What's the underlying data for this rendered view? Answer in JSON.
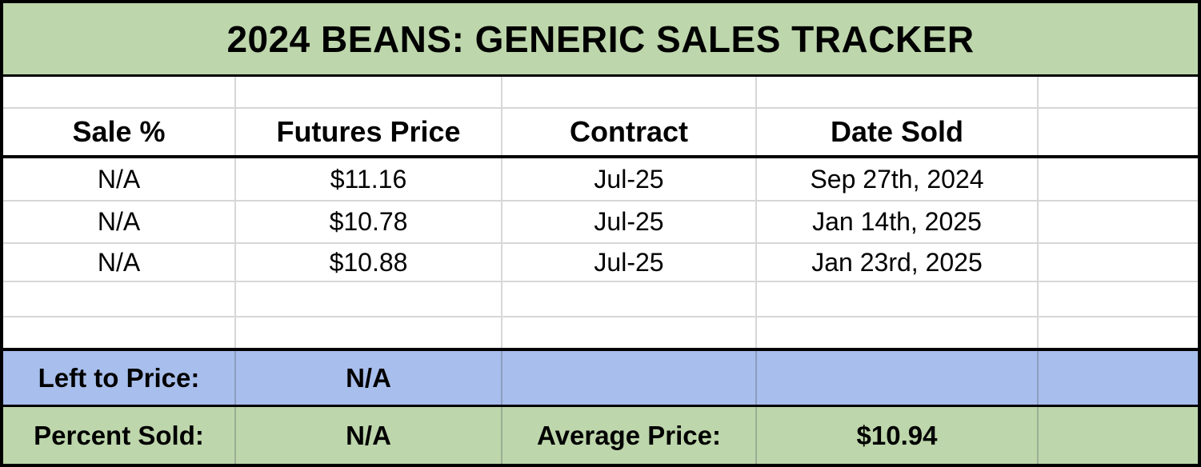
{
  "title": "2024 BEANS: GENERIC SALES TRACKER",
  "colors": {
    "title_bg": "#bdd6ab",
    "summary_blue_bg": "#a8beec",
    "summary_green_bg": "#bdd6ab",
    "gridline": "#d7d7d7",
    "outer_border": "#000000",
    "text": "#000000"
  },
  "table": {
    "headers": [
      "Sale %",
      "Futures Price",
      "Contract",
      "Date Sold"
    ],
    "rows": [
      {
        "sale_pct": "N/A",
        "futures_price": "$11.16",
        "contract": "Jul-25",
        "date_sold": "Sep 27th, 2024"
      },
      {
        "sale_pct": "N/A",
        "futures_price": "$10.78",
        "contract": "Jul-25",
        "date_sold": "Jan 14th, 2025"
      },
      {
        "sale_pct": "N/A",
        "futures_price": "$10.88",
        "contract": "Jul-25",
        "date_sold": "Jan 23rd, 2025"
      }
    ]
  },
  "summary": {
    "left_to_price": {
      "label": "Left to Price:",
      "value": "N/A"
    },
    "percent_sold": {
      "label": "Percent Sold:",
      "value": "N/A"
    },
    "average_price": {
      "label": "Average Price:",
      "value": "$10.94"
    }
  }
}
